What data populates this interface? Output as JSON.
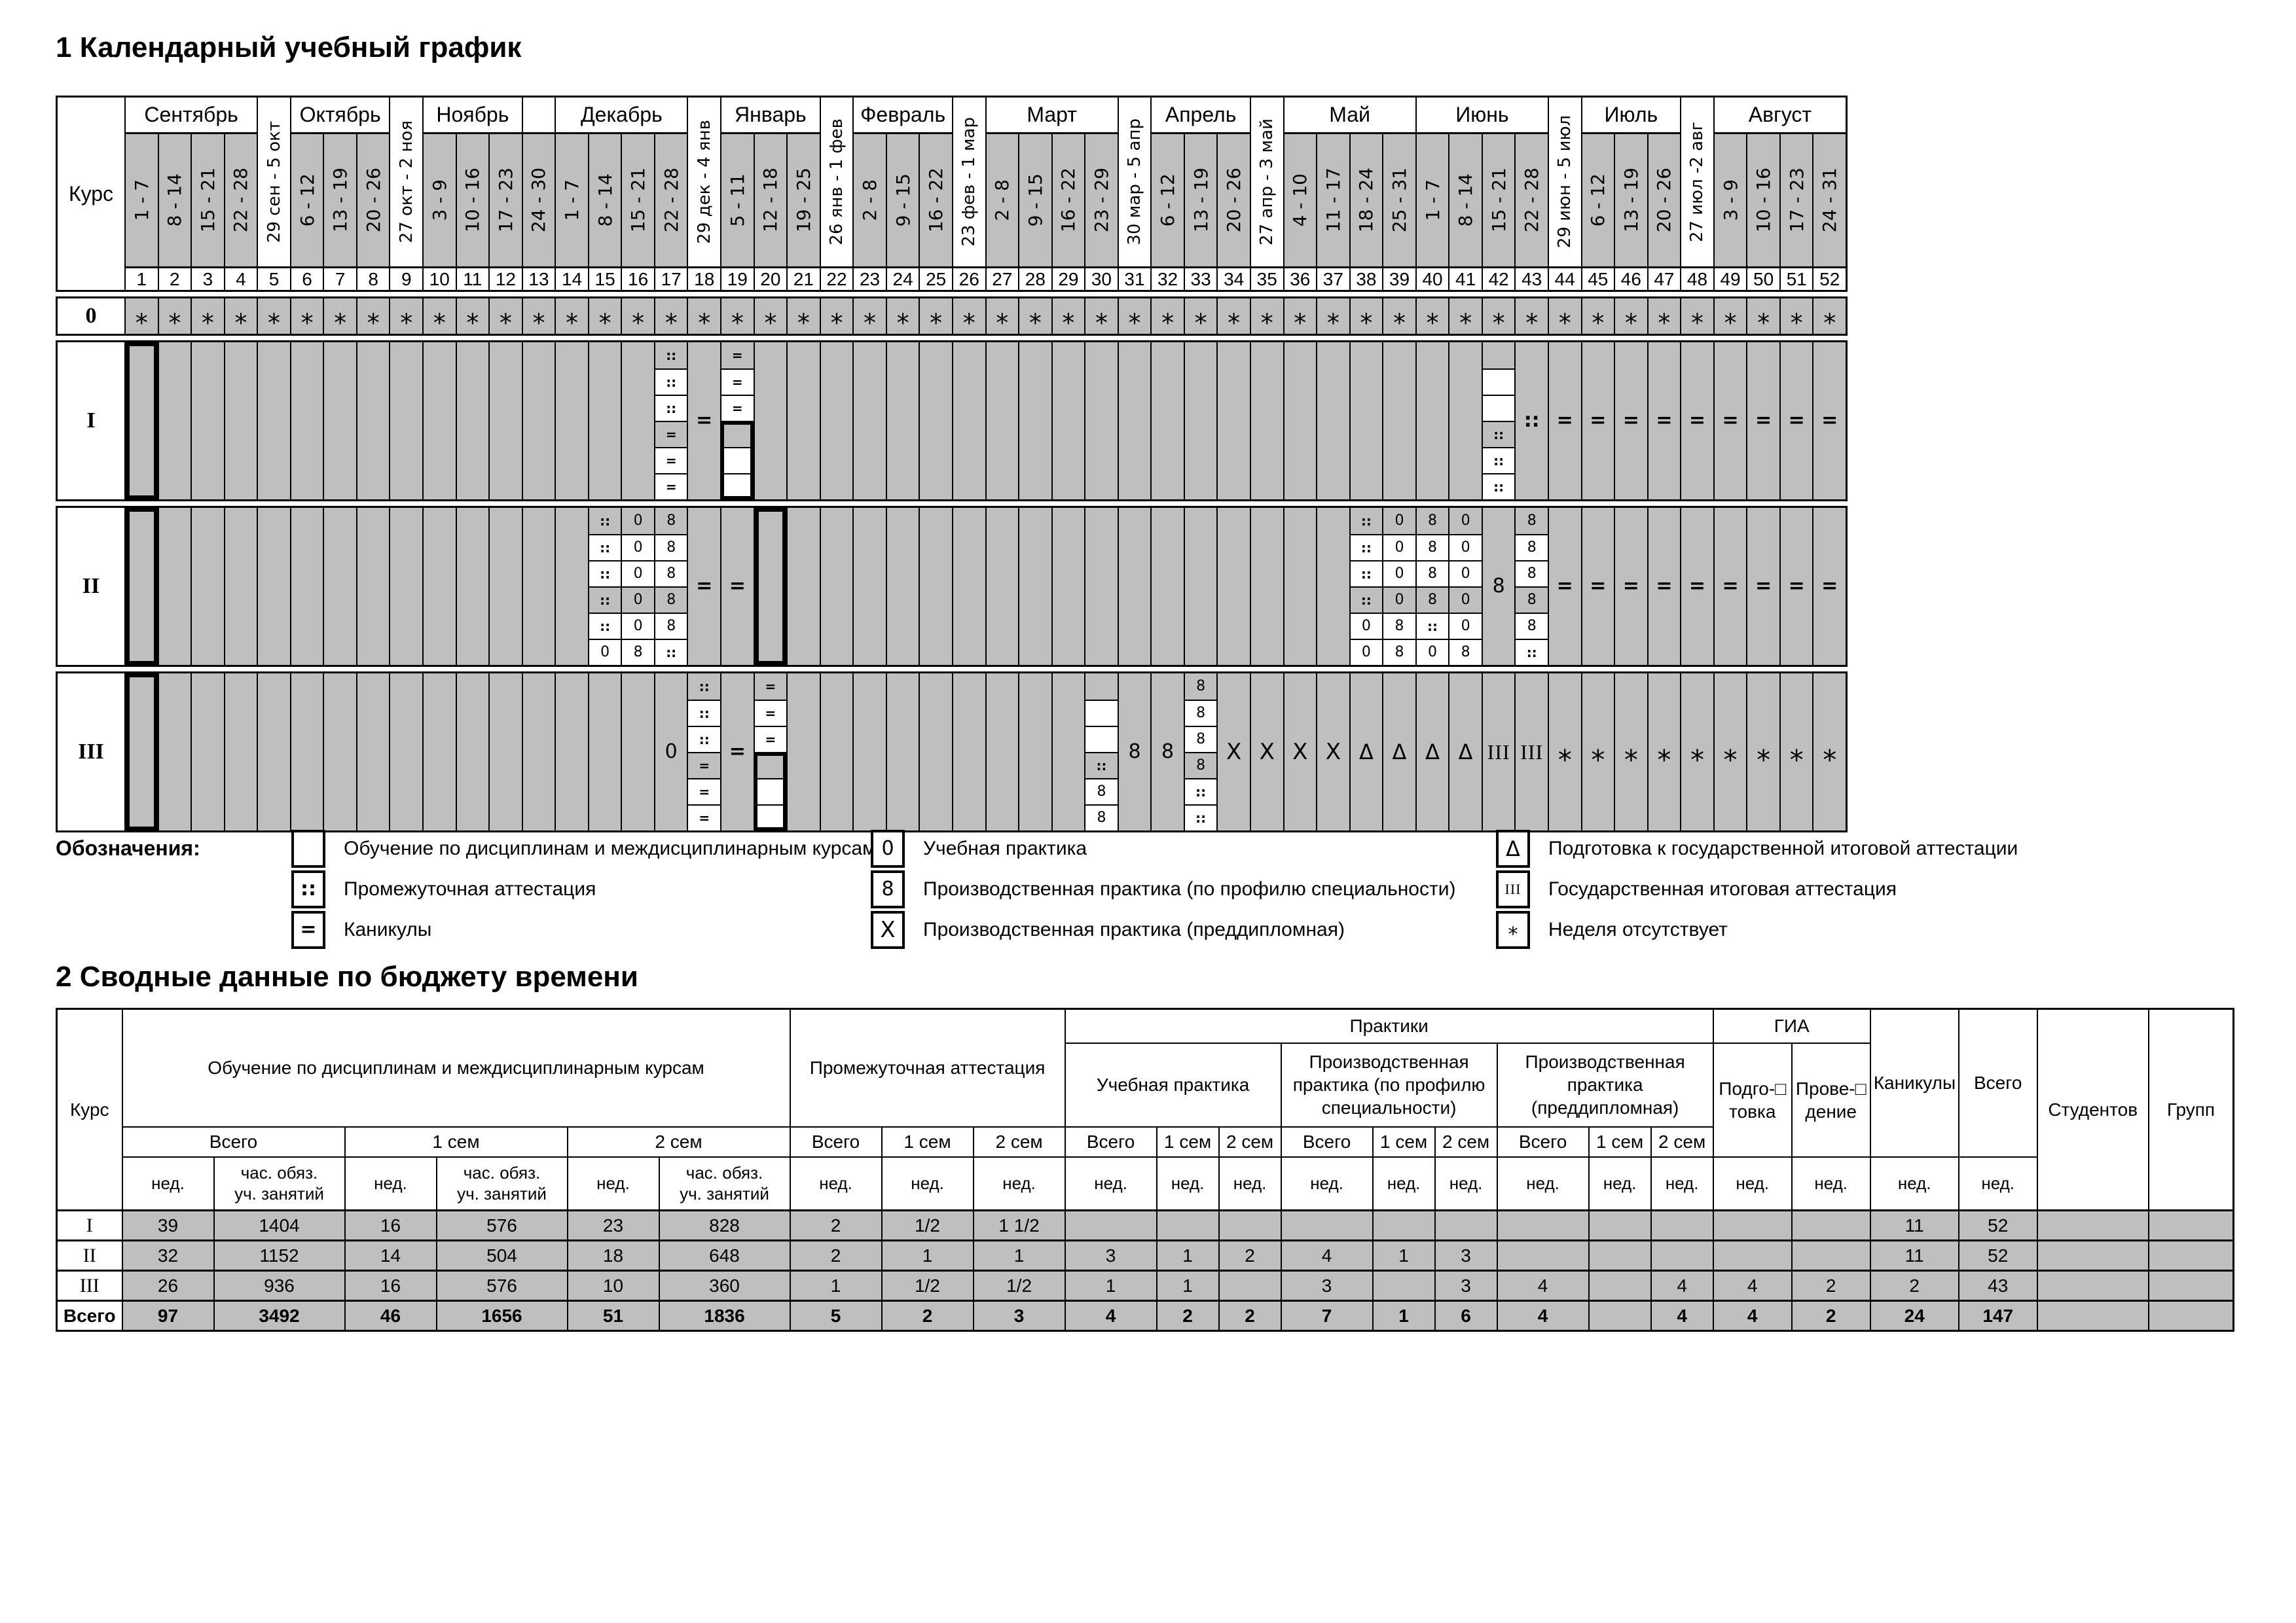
{
  "section1_title": "1 Календарный учебный график",
  "section2_title": "2 Сводные данные по бюджету времени",
  "colors": {
    "cell_gray": "#bfbfbf",
    "line": "#000000",
    "background": "#ffffff"
  },
  "calendar": {
    "course_header": "Курс",
    "month_groups": [
      {
        "label": "Сентябрь",
        "span": 4,
        "type": "month"
      },
      {
        "label": "29 сен - 5 окт",
        "span": 1,
        "type": "cross"
      },
      {
        "label": "Октябрь",
        "span": 3,
        "type": "month"
      },
      {
        "label": "27 окт - 2 ноя",
        "span": 1,
        "type": "cross"
      },
      {
        "label": "Ноябрь",
        "span": 3,
        "type": "month"
      },
      {
        "label": "",
        "span": 1,
        "type": "month"
      },
      {
        "label": "Декабрь",
        "span": 4,
        "type": "month"
      },
      {
        "label": "29 дек - 4 янв",
        "span": 1,
        "type": "cross"
      },
      {
        "label": "Январь",
        "span": 3,
        "type": "month"
      },
      {
        "label": "26 янв - 1 фев",
        "span": 1,
        "type": "cross"
      },
      {
        "label": "Февраль",
        "span": 3,
        "type": "month"
      },
      {
        "label": "23 фев - 1 мар",
        "span": 1,
        "type": "cross"
      },
      {
        "label": "Март",
        "span": 4,
        "type": "month"
      },
      {
        "label": "30 мар - 5 апр",
        "span": 1,
        "type": "cross"
      },
      {
        "label": "Апрель",
        "span": 3,
        "type": "month"
      },
      {
        "label": "27 апр - 3 май",
        "span": 1,
        "type": "cross"
      },
      {
        "label": "Май",
        "span": 4,
        "type": "month"
      },
      {
        "label": "Июнь",
        "span": 4,
        "type": "month"
      },
      {
        "label": "29 июн - 5 июл",
        "span": 1,
        "type": "cross"
      },
      {
        "label": "Июль",
        "span": 3,
        "type": "month"
      },
      {
        "label": "27 июл -2 авг",
        "span": 1,
        "type": "cross"
      },
      {
        "label": "Август",
        "span": 4,
        "type": "month"
      }
    ],
    "week_ranges": [
      "1 - 7",
      "8 - 14",
      "15 - 21",
      "22 - 28",
      "29 сен - 5 окт",
      "6 - 12",
      "13 - 19",
      "20 - 26",
      "27 окт - 2 ноя",
      "3 - 9",
      "10 - 16",
      "17 - 23",
      "24 - 30",
      "1 - 7",
      "8 - 14",
      "15 - 21",
      "22 - 28",
      "29 дек - 4 янв",
      "5 - 11",
      "12 - 18",
      "19 - 25",
      "26 янв - 1 фев",
      "2 - 8",
      "9 - 15",
      "16 - 22",
      "23 фев - 1 мар",
      "2 - 8",
      "9 - 15",
      "16 - 22",
      "23 - 29",
      "30 мар - 5 апр",
      "6 - 12",
      "13 - 19",
      "20 - 26",
      "27 апр - 3 май",
      "4 - 10",
      "11 - 17",
      "18 - 24",
      "25 - 31",
      "1 - 7",
      "8 - 14",
      "15 - 21",
      "22 - 28",
      "29 июн - 5 июл",
      "6 - 12",
      "13 - 19",
      "20 - 26",
      "27 июл -2 авг",
      "3 - 9",
      "10 - 16",
      "17 - 23",
      "24 - 31"
    ],
    "week_numbers": [
      1,
      2,
      3,
      4,
      5,
      6,
      7,
      8,
      9,
      10,
      11,
      12,
      13,
      14,
      15,
      16,
      17,
      18,
      19,
      20,
      21,
      22,
      23,
      24,
      25,
      26,
      27,
      28,
      29,
      30,
      31,
      32,
      33,
      34,
      35,
      36,
      37,
      38,
      39,
      40,
      41,
      42,
      43,
      44,
      45,
      46,
      47,
      48,
      49,
      50,
      51,
      52
    ],
    "courses": [
      {
        "label": "0",
        "short": true,
        "defaultSym": "*",
        "cells": {},
        "runs": []
      },
      {
        "label": "I",
        "short": false,
        "defaultSym": "",
        "cells": {
          "1": "box",
          "17": {
            "stack": [
              "::",
              "::",
              "::",
              "=",
              "=",
              "="
            ]
          },
          "18": {
            "sym": "="
          },
          "19": {
            "stack": [
              "=",
              "=",
              "=",
              "",
              "",
              ""
            ],
            "boxFrom": 4
          },
          "42": {
            "stack": [
              "",
              "",
              "",
              "::",
              "::",
              "::"
            ]
          },
          "43": {
            "sym": "::"
          }
        },
        "runs": [
          {
            "from": 44,
            "to": 52,
            "sym": "="
          }
        ]
      },
      {
        "label": "II",
        "short": false,
        "defaultSym": "",
        "cells": {
          "1": "box",
          "15": {
            "stack": [
              "::",
              "::",
              "::",
              "::",
              "::",
              "0"
            ]
          },
          "16": {
            "stack": [
              "0",
              "0",
              "0",
              "0",
              "0",
              "8"
            ]
          },
          "17": {
            "stack": [
              "8",
              "8",
              "8",
              "8",
              "8",
              "::"
            ]
          },
          "18": {
            "sym": "="
          },
          "19": {
            "sym": "="
          },
          "20": "box",
          "38": {
            "stack": [
              "::",
              "::",
              "::",
              "::",
              "0",
              "0"
            ]
          },
          "39": {
            "stack": [
              "0",
              "0",
              "0",
              "0",
              "8",
              "8"
            ]
          },
          "40": {
            "stack": [
              "8",
              "8",
              "8",
              "8",
              "::",
              "0"
            ]
          },
          "41": {
            "stack": [
              "0",
              "0",
              "0",
              "0",
              "0",
              "8"
            ]
          },
          "42": {
            "sym": "8"
          },
          "43": {
            "stack": [
              "8",
              "8",
              "8",
              "8",
              "8",
              "::"
            ]
          }
        },
        "runs": [
          {
            "from": 44,
            "to": 52,
            "sym": "="
          }
        ]
      },
      {
        "label": "III",
        "short": false,
        "defaultSym": "",
        "cells": {
          "1": "box",
          "17": {
            "sym": "0"
          },
          "18": {
            "stack": [
              "::",
              "::",
              "::",
              "=",
              "=",
              "="
            ]
          },
          "19": {
            "sym": "="
          },
          "20": {
            "stack": [
              "=",
              "=",
              "=",
              "",
              "",
              ""
            ],
            "boxFrom": 4
          },
          "30": {
            "stack": [
              "",
              "",
              "",
              "::",
              "8",
              "8"
            ]
          },
          "31": {
            "sym": "8"
          },
          "32": {
            "sym": "8"
          },
          "33": {
            "stack": [
              "8",
              "8",
              "8",
              "8",
              "::",
              "::"
            ]
          },
          "42": {
            "sym": "III"
          },
          "43": {
            "sym": "III"
          }
        },
        "runs": [
          {
            "from": 34,
            "to": 37,
            "sym": "X"
          },
          {
            "from": 38,
            "to": 41,
            "sym": "Δ"
          },
          {
            "from": 44,
            "to": 52,
            "sym": "*"
          }
        ]
      }
    ]
  },
  "legend": {
    "title": "Обозначения:",
    "columns": [
      [
        {
          "sym": "",
          "label": "Обучение по дисциплинам и междисциплинарным курсам"
        },
        {
          "sym": "::",
          "label": "Промежуточная аттестация"
        },
        {
          "sym": "=",
          "label": "Каникулы"
        }
      ],
      [
        {
          "sym": "0",
          "label": "Учебная практика"
        },
        {
          "sym": "8",
          "label": "Производственная практика (по профилю специальности)"
        },
        {
          "sym": "X",
          "label": "Производственная практика (преддипломная)"
        }
      ],
      [
        {
          "sym": "Δ",
          "label": "Подготовка к государственной итоговой аттестации"
        },
        {
          "sym": "III",
          "label": "Государственная итоговая аттестация"
        },
        {
          "sym": "*",
          "label": "Неделя отсутствует"
        }
      ]
    ]
  },
  "summary": {
    "course_label": "Курс",
    "groups": {
      "training": "Обучение по дисциплинам и междисциплинарным курсам",
      "interim": "Промежуточная аттестация",
      "practices": "Практики",
      "edu_practice": "Учебная практика",
      "prof_practice": "Производственная практика (по профилю специальности)",
      "pre_diploma": "Производственная практика\n(преддипломная)",
      "gia": "ГИА",
      "gia_prep": "Подго-□\nтовка",
      "gia_conduct": "Прове-□\nдение",
      "vacation": "Каникулы",
      "total": "Всего",
      "students": "Студентов",
      "groups": "Групп"
    },
    "sub": {
      "total": "Всего",
      "sem1": "1 сем",
      "sem2": "2 сем",
      "weeks": "нед.",
      "hours": "час. обяз.\nуч. занятий"
    },
    "rows": [
      {
        "label": "I",
        "values": [
          "39",
          "1404",
          "16",
          "576",
          "23",
          "828",
          "2",
          "1/2",
          "1 1/2",
          "",
          "",
          "",
          "",
          "",
          "",
          "",
          "",
          "",
          "",
          "",
          "11",
          "52",
          "",
          ""
        ]
      },
      {
        "label": "II",
        "values": [
          "32",
          "1152",
          "14",
          "504",
          "18",
          "648",
          "2",
          "1",
          "1",
          "3",
          "1",
          "2",
          "4",
          "1",
          "3",
          "",
          "",
          "",
          "",
          "",
          "11",
          "52",
          "",
          ""
        ]
      },
      {
        "label": "III",
        "values": [
          "26",
          "936",
          "16",
          "576",
          "10",
          "360",
          "1",
          "1/2",
          "1/2",
          "1",
          "1",
          "",
          "3",
          "",
          "3",
          "4",
          "",
          "4",
          "4",
          "2",
          "2",
          "43",
          "",
          ""
        ]
      },
      {
        "label": "Всего",
        "values": [
          "97",
          "3492",
          "46",
          "1656",
          "51",
          "1836",
          "5",
          "2",
          "3",
          "4",
          "2",
          "2",
          "7",
          "1",
          "6",
          "4",
          "",
          "4",
          "4",
          "2",
          "24",
          "147",
          "",
          ""
        ]
      }
    ]
  }
}
